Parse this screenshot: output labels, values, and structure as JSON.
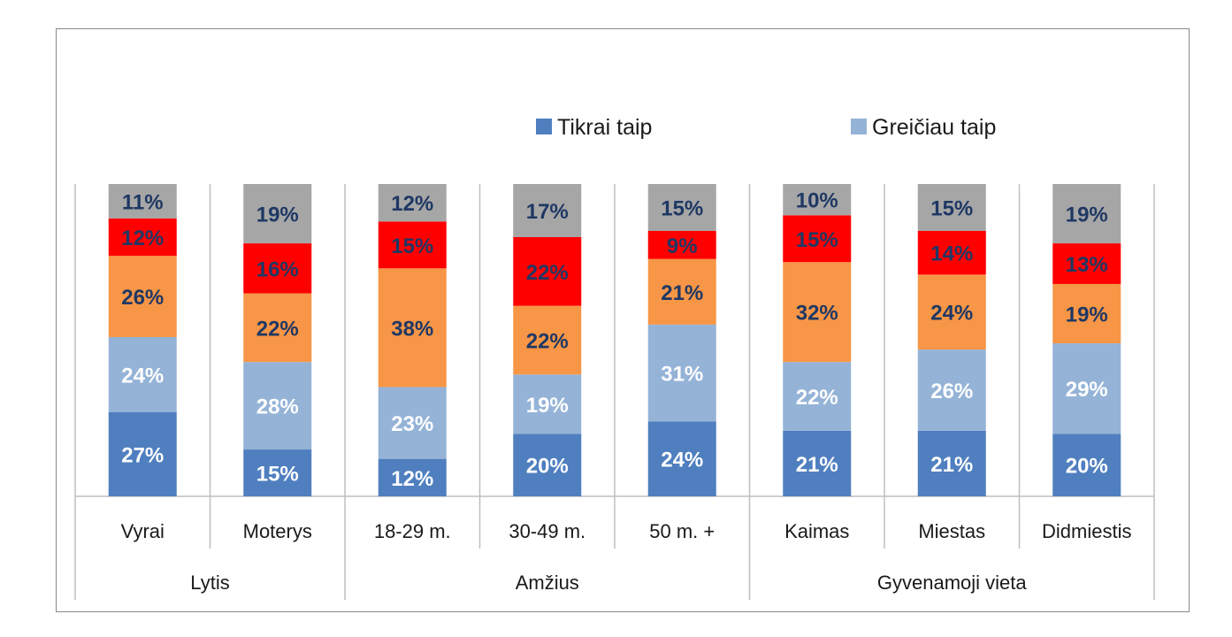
{
  "chart_data": {
    "type": "bar",
    "stacked": true,
    "grid": false,
    "legend_position": "top-right",
    "ylim": [
      0,
      100
    ],
    "legend": [
      {
        "name": "Tikrai taip",
        "color": "#4f7fbf"
      },
      {
        "name": "Greičiau taip",
        "color": "#95b3d7"
      }
    ],
    "categories": [
      "Vyrai",
      "Moterys",
      "18-29 m.",
      "30-49 m.",
      "50 m. +",
      "Kaimas",
      "Miestas",
      "Didmiestis"
    ],
    "groups": [
      {
        "label": "Lytis",
        "count": 2
      },
      {
        "label": "Amžius",
        "count": 3
      },
      {
        "label": "Gyvenamoji vieta",
        "count": 3
      }
    ],
    "series": [
      {
        "name": "Tikrai taip",
        "color": "#4f7fbf",
        "label_color": "#ffffff",
        "values": [
          27,
          15,
          12,
          20,
          24,
          21,
          21,
          20
        ]
      },
      {
        "name": "Greičiau taip",
        "color": "#95b3d7",
        "label_color": "#ffffff",
        "values": [
          24,
          28,
          23,
          19,
          31,
          22,
          26,
          29
        ]
      },
      {
        "color": "#f79646",
        "label_color": "#1f3864",
        "values": [
          26,
          22,
          38,
          22,
          21,
          32,
          24,
          19
        ]
      },
      {
        "color": "#ff0000",
        "label_color": "#1f3864",
        "values": [
          12,
          16,
          15,
          22,
          9,
          15,
          14,
          13
        ]
      },
      {
        "color": "#a6a6a6",
        "label_color": "#1f3864",
        "values": [
          11,
          19,
          12,
          17,
          15,
          10,
          15,
          19
        ]
      }
    ]
  }
}
